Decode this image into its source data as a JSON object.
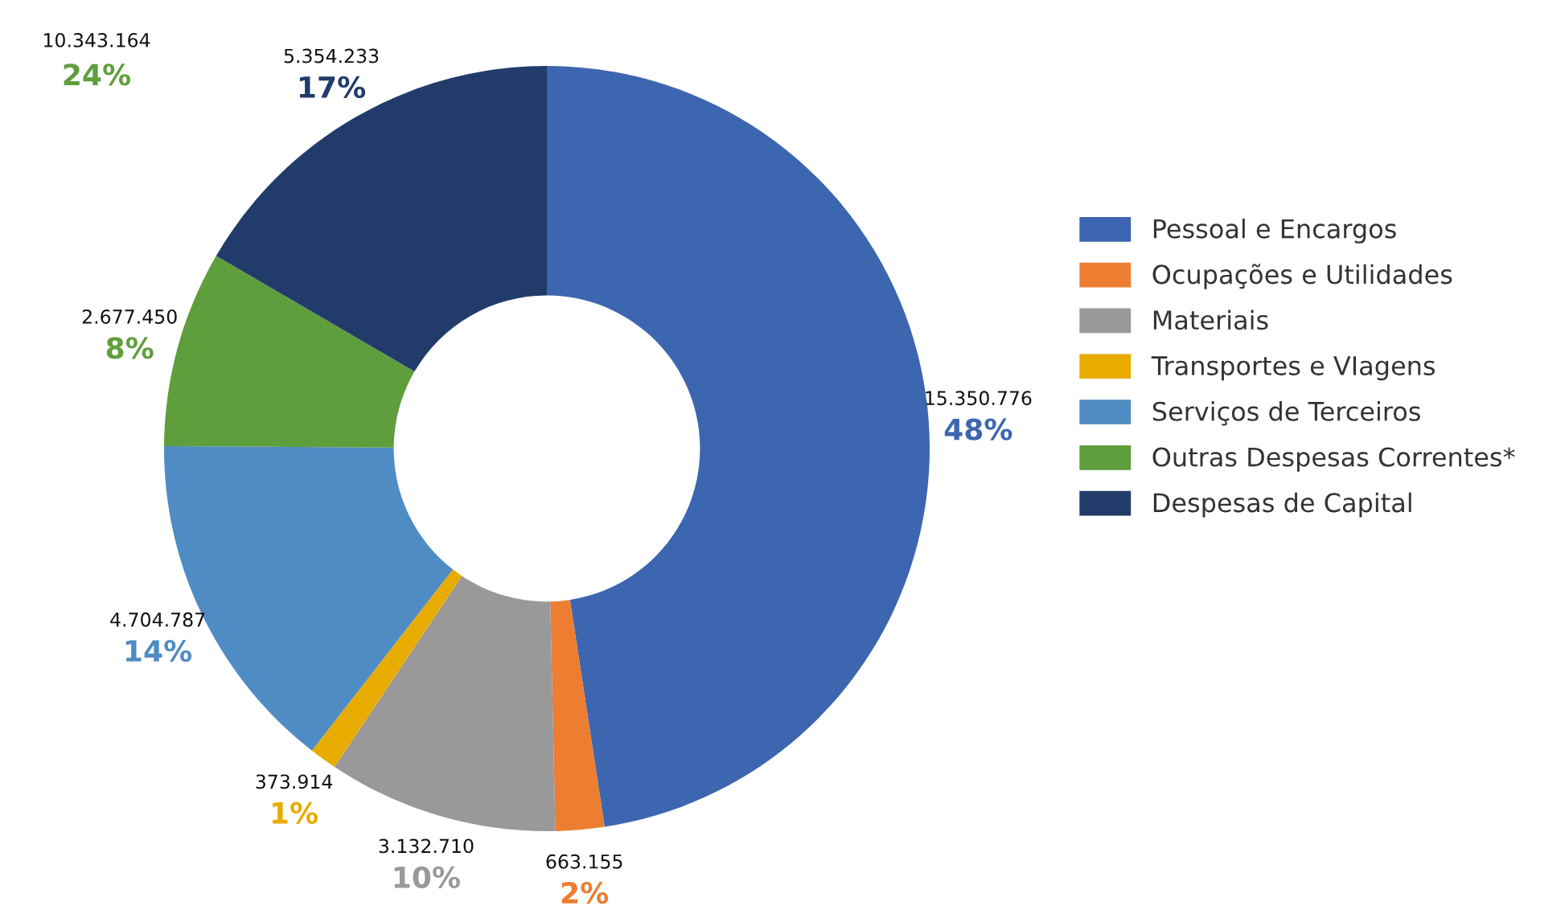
{
  "chart_data": {
    "type": "donut",
    "categories": [
      "Pessoal e Encargos",
      "Ocupações e Utilidades",
      "Materiais",
      "Transportes e VIagens",
      "Serviços de Terceiros",
      "Outras Despesas Correntes*",
      "Despesas de Capital"
    ],
    "values": [
      15350776,
      663155,
      3132710,
      373914,
      4704787,
      2677450,
      5354233
    ],
    "colors": [
      "#3d66b0",
      "#ed7d31",
      "#999999",
      "#e8ac00",
      "#4f8cc4",
      "#5f9e3c",
      "#213c6b"
    ],
    "value_labels": [
      "15.350.776",
      "663.155",
      "3.132.710",
      "373.914",
      "4.704.787",
      "2.677.450",
      "5.354.233"
    ],
    "annotations": [
      "48%",
      "2%",
      "10%",
      "1%",
      "14%",
      "8%",
      "17%",
      "10.343.164",
      "24%"
    ],
    "legend": "right"
  }
}
